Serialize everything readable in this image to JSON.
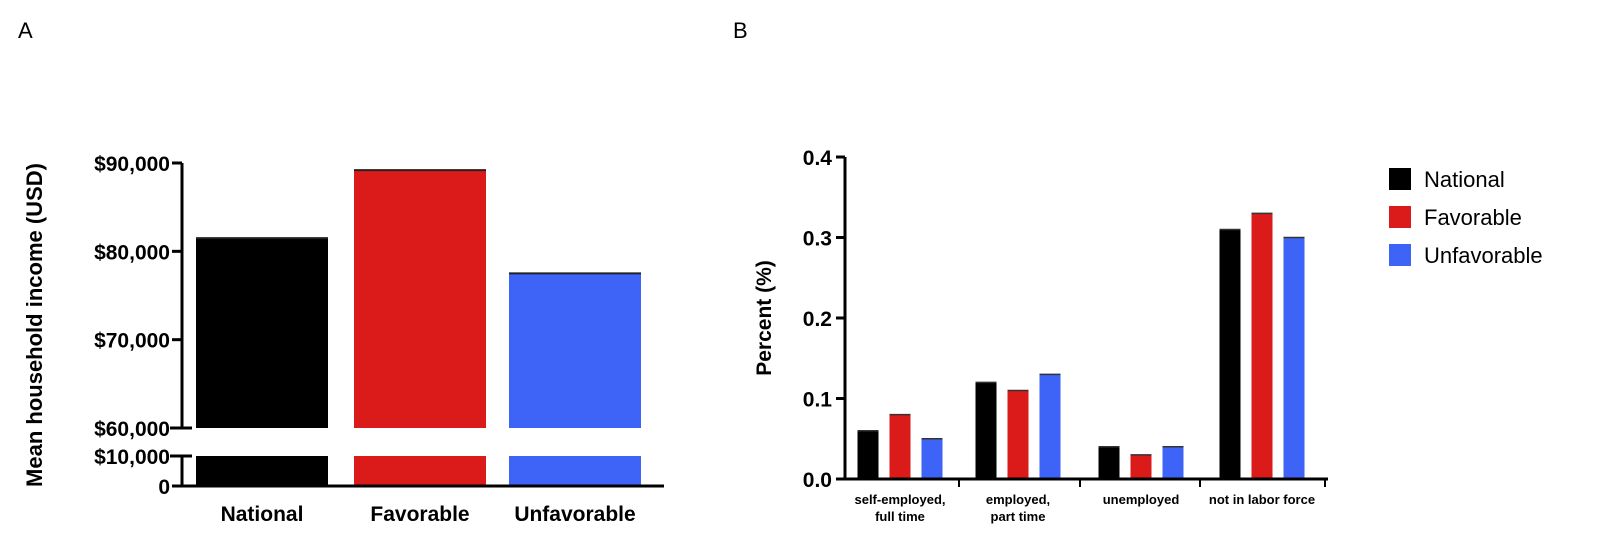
{
  "panels": {
    "a_letter": "A",
    "b_letter": "B"
  },
  "colors": {
    "National": "#000000",
    "Favorable": "#db1a1a",
    "Unfavorable": "#3d64f7"
  },
  "chart_data": [
    {
      "type": "bar",
      "title": "",
      "ylabel": "Mean household income (USD)",
      "xlabel": "",
      "axis_break": true,
      "y_ticks_lower": [
        "0",
        "$10,000"
      ],
      "y_ticks_upper": [
        "$60,000",
        "$70,000",
        "$80,000",
        "$90,000"
      ],
      "ylim_lower": [
        0,
        10000
      ],
      "ylim_upper": [
        60000,
        90000
      ],
      "categories": [
        "National",
        "Favorable",
        "Unfavorable"
      ],
      "values": [
        81500,
        89200,
        77500
      ],
      "grid": false
    },
    {
      "type": "bar",
      "title": "",
      "ylabel": "Percent (%)",
      "xlabel": "",
      "ylim": [
        0,
        0.4
      ],
      "y_ticks": [
        "0.0",
        "0.1",
        "0.2",
        "0.3",
        "0.4"
      ],
      "categories": [
        "self-employed,\nfull time",
        "employed,\npart time",
        "unemployed",
        "not in labor force"
      ],
      "series": [
        {
          "name": "National",
          "values": [
            0.06,
            0.12,
            0.04,
            0.31
          ]
        },
        {
          "name": "Favorable",
          "values": [
            0.08,
            0.11,
            0.03,
            0.33
          ]
        },
        {
          "name": "Unfavorable",
          "values": [
            0.05,
            0.13,
            0.04,
            0.3
          ]
        }
      ],
      "legend": "right",
      "grid": false
    }
  ]
}
